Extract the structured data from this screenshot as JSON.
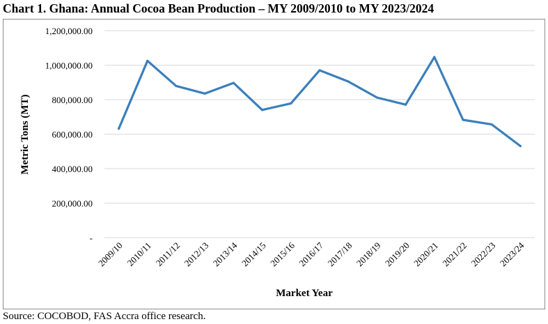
{
  "title": "Chart 1. Ghana: Annual Cocoa Bean Production – MY 2009/2010 to MY 2023/2024",
  "source": "Source: COCOBOD, FAS Accra office research.",
  "chart_data": {
    "type": "line",
    "xlabel": "Market Year",
    "ylabel": "Metric Tons (MT)",
    "ylim": [
      0,
      1200000
    ],
    "yticks": [
      0,
      200000,
      400000,
      600000,
      800000,
      1000000,
      1200000
    ],
    "ytick_labels": [
      "-",
      "200,000.00",
      "400,000.00",
      "600,000.00",
      "800,000.00",
      "1,000,000.00",
      "1,200,000.00"
    ],
    "grid": true,
    "legend": "none",
    "line_color": "#3b7fbd",
    "categories": [
      "2009/10",
      "2010/11",
      "2011/12",
      "2012/13",
      "2013/14",
      "2014/15",
      "2015/16",
      "2016/17",
      "2017/18",
      "2018/19",
      "2019/20",
      "2020/21",
      "2021/22",
      "2022/23",
      "2023/24"
    ],
    "values": [
      632000,
      1025000,
      879000,
      835000,
      897000,
      740000,
      778000,
      970000,
      905000,
      812000,
      771000,
      1047000,
      683000,
      656000,
      531000
    ]
  }
}
